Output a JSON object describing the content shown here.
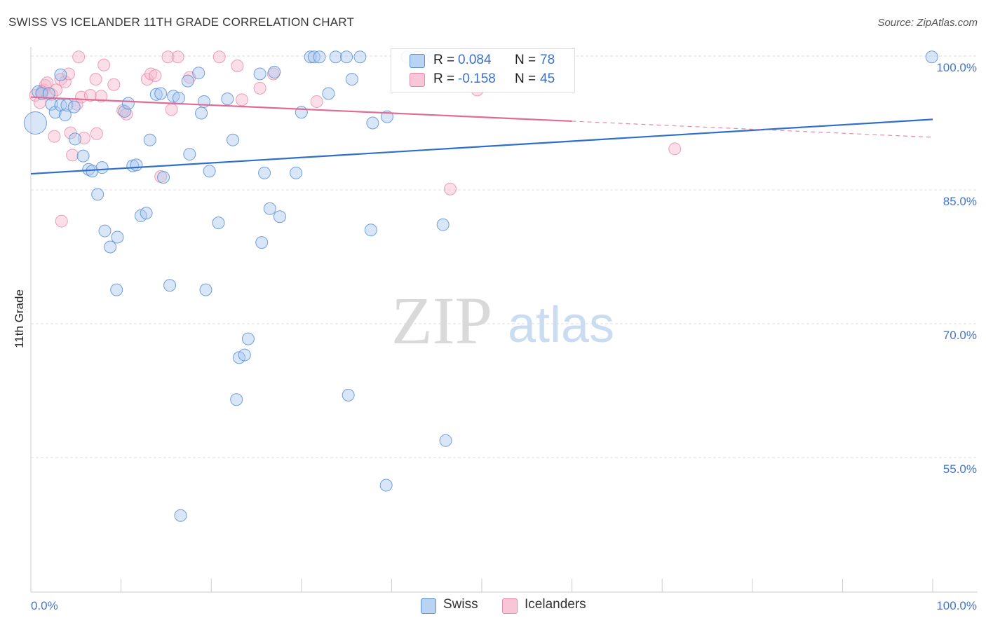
{
  "title": "SWISS VS ICELANDER 11TH GRADE CORRELATION CHART",
  "source": "Source: ZipAtlas.com",
  "watermark": {
    "zip": "ZIP",
    "atlas": "atlas"
  },
  "legend": {
    "rows": [
      {
        "r_label": "R =",
        "r_value": "0.084",
        "n_label": "N =",
        "n_value": "78"
      },
      {
        "r_label": "R =",
        "r_value": "-0.158",
        "n_label": "N =",
        "n_value": "45"
      }
    ]
  },
  "bottom_legend": {
    "swiss": "Swiss",
    "icelanders": "Icelanders"
  },
  "colors": {
    "swiss_fill": "#a8c8f0",
    "swiss_stroke": "#5b8fd6",
    "swiss_line": "#2f6fc9",
    "iceland_fill": "#f6b8cc",
    "iceland_stroke": "#e88aa8",
    "iceland_line": "#e06b95",
    "grid": "#dddddd",
    "axis_text": "#4477cc"
  },
  "chart_data": {
    "type": "scatter",
    "title": "SWISS VS ICELANDER 11TH GRADE CORRELATION CHART",
    "xlabel": "",
    "ylabel": "11th Grade",
    "xlim": [
      0,
      100
    ],
    "ylim": [
      40,
      101.5
    ],
    "x_tick_labels": [
      "0.0%",
      "100.0%"
    ],
    "y_ticks": [
      55,
      70,
      85,
      100
    ],
    "y_tick_labels": [
      "55.0%",
      "70.0%",
      "85.0%",
      "100.0%"
    ],
    "grid": true,
    "series": [
      {
        "name": "Swiss",
        "R": 0.084,
        "N": 78,
        "trend": {
          "x": [
            0,
            100
          ],
          "y": [
            86.8,
            92.9
          ],
          "dashed_from": null
        },
        "points": [
          [
            0.5,
            92.5
          ],
          [
            0.8,
            96.0
          ],
          [
            1.2,
            95.8
          ],
          [
            2.0,
            95.8
          ],
          [
            2.3,
            94.6
          ],
          [
            2.7,
            93.7
          ],
          [
            3.3,
            94.5
          ],
          [
            3.8,
            93.4
          ],
          [
            4.0,
            94.5
          ],
          [
            4.8,
            94.3
          ],
          [
            4.9,
            90.7
          ],
          [
            5.8,
            88.8
          ],
          [
            6.4,
            87.3
          ],
          [
            6.8,
            87.1
          ],
          [
            7.4,
            84.5
          ],
          [
            7.9,
            87.5
          ],
          [
            8.2,
            80.4
          ],
          [
            8.8,
            78.6
          ],
          [
            9.6,
            79.7
          ],
          [
            9.5,
            73.8
          ],
          [
            10.4,
            93.8
          ],
          [
            10.8,
            94.7
          ],
          [
            11.3,
            87.7
          ],
          [
            11.7,
            87.8
          ],
          [
            12.2,
            82.1
          ],
          [
            12.8,
            82.4
          ],
          [
            13.2,
            90.6
          ],
          [
            13.9,
            95.7
          ],
          [
            14.4,
            95.8
          ],
          [
            14.7,
            86.4
          ],
          [
            15.4,
            74.3
          ],
          [
            15.8,
            95.5
          ],
          [
            16.4,
            95.3
          ],
          [
            16.6,
            48.5
          ],
          [
            17.4,
            97.2
          ],
          [
            17.6,
            89.0
          ],
          [
            18.6,
            98.1
          ],
          [
            18.9,
            93.6
          ],
          [
            19.2,
            94.9
          ],
          [
            19.4,
            73.8
          ],
          [
            19.8,
            87.1
          ],
          [
            20.8,
            81.3
          ],
          [
            21.8,
            95.2
          ],
          [
            22.4,
            90.6
          ],
          [
            22.8,
            61.5
          ],
          [
            23.1,
            66.2
          ],
          [
            23.7,
            66.5
          ],
          [
            24.1,
            68.3
          ],
          [
            25.4,
            98.0
          ],
          [
            25.6,
            79.1
          ],
          [
            25.9,
            86.9
          ],
          [
            26.5,
            82.9
          ],
          [
            27.0,
            98.2
          ],
          [
            27.6,
            82.0
          ],
          [
            29.4,
            86.9
          ],
          [
            30.0,
            93.7
          ],
          [
            31.0,
            99.9
          ],
          [
            31.4,
            99.9
          ],
          [
            32.0,
            99.9
          ],
          [
            33.0,
            95.8
          ],
          [
            33.8,
            99.9
          ],
          [
            35.0,
            99.9
          ],
          [
            35.2,
            62.0
          ],
          [
            35.6,
            97.4
          ],
          [
            36.5,
            99.9
          ],
          [
            37.7,
            80.5
          ],
          [
            37.9,
            92.5
          ],
          [
            39.4,
            51.9
          ],
          [
            39.5,
            93.2
          ],
          [
            41.7,
            99.9
          ],
          [
            42.9,
            99.9
          ],
          [
            44.6,
            99.9
          ],
          [
            45.7,
            81.1
          ],
          [
            46.0,
            56.9
          ],
          [
            49.1,
            99.9
          ],
          [
            50.1,
            99.9
          ],
          [
            99.9,
            99.9
          ],
          [
            3.3,
            97.9
          ]
        ]
      },
      {
        "name": "Icelanders",
        "R": -0.158,
        "N": 45,
        "trend": {
          "x": [
            0,
            100
          ],
          "y": [
            95.4,
            90.9
          ],
          "dashed_from": 60
        },
        "points": [
          [
            0.5,
            95.6
          ],
          [
            1.0,
            94.8
          ],
          [
            1.4,
            96.2
          ],
          [
            1.6,
            96.7
          ],
          [
            1.8,
            97.0
          ],
          [
            2.3,
            95.7
          ],
          [
            2.6,
            91.0
          ],
          [
            2.8,
            96.2
          ],
          [
            3.3,
            97.4
          ],
          [
            3.8,
            97.1
          ],
          [
            3.4,
            81.5
          ],
          [
            4.2,
            98.0
          ],
          [
            4.4,
            91.4
          ],
          [
            4.6,
            88.9
          ],
          [
            5.1,
            94.6
          ],
          [
            5.3,
            99.9
          ],
          [
            5.6,
            95.4
          ],
          [
            5.9,
            90.8
          ],
          [
            6.6,
            95.6
          ],
          [
            7.2,
            97.4
          ],
          [
            7.3,
            91.3
          ],
          [
            7.8,
            95.5
          ],
          [
            8.1,
            99.0
          ],
          [
            9.2,
            96.8
          ],
          [
            10.2,
            93.9
          ],
          [
            10.6,
            93.5
          ],
          [
            12.9,
            97.4
          ],
          [
            13.3,
            98.0
          ],
          [
            13.8,
            97.8
          ],
          [
            14.4,
            86.5
          ],
          [
            15.2,
            99.9
          ],
          [
            15.6,
            94.0
          ],
          [
            16.3,
            99.9
          ],
          [
            17.6,
            97.6
          ],
          [
            20.9,
            99.9
          ],
          [
            22.9,
            98.9
          ],
          [
            23.4,
            95.1
          ],
          [
            25.4,
            96.4
          ],
          [
            26.9,
            98.0
          ],
          [
            31.7,
            94.9
          ],
          [
            46.5,
            85.1
          ],
          [
            49.0,
            99.9
          ],
          [
            49.5,
            96.2
          ],
          [
            71.4,
            89.6
          ],
          [
            1.2,
            96.0
          ]
        ]
      }
    ]
  }
}
